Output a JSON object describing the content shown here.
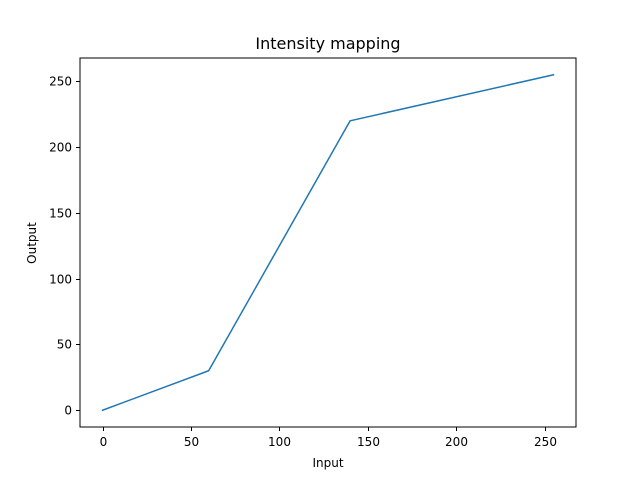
{
  "chart_data": {
    "type": "line",
    "title": "Intensity mapping",
    "xlabel": "Input",
    "ylabel": "Output",
    "xlim": [
      -12.75,
      267.75
    ],
    "ylim": [
      -12.75,
      267.75
    ],
    "xticks": [
      0,
      50,
      100,
      150,
      200,
      250
    ],
    "yticks": [
      0,
      50,
      100,
      150,
      200,
      250
    ],
    "xtick_labels": [
      "0",
      "50",
      "100",
      "150",
      "200",
      "250"
    ],
    "ytick_labels": [
      "0",
      "50",
      "100",
      "150",
      "200",
      "250"
    ],
    "grid": false,
    "series": [
      {
        "color": "#1f77b4",
        "x": [
          0,
          60,
          140,
          255
        ],
        "y": [
          0,
          30,
          220,
          255
        ]
      }
    ]
  }
}
